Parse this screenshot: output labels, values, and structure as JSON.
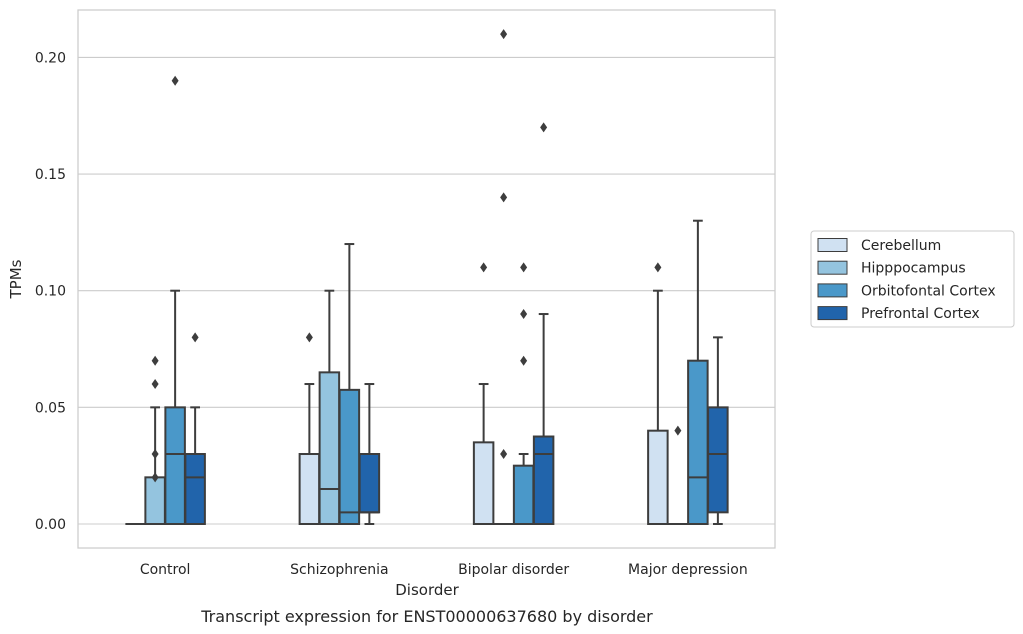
{
  "chart_data": {
    "type": "boxplot",
    "title": "",
    "caption": "Transcript expression for ENST00000637680 by disorder",
    "xlabel": "Disorder",
    "ylabel": "TPMs",
    "ylim": [
      -0.01,
      0.22
    ],
    "yticks": [
      "0.00",
      "0.05",
      "0.10",
      "0.15",
      "0.20"
    ],
    "ytick_values": [
      0.0,
      0.05,
      0.1,
      0.15,
      0.2
    ],
    "grid": "horizontal",
    "legend_position": "right-center",
    "categories": [
      "Control",
      "Schizophrenia",
      "Bipolar disorder",
      "Major depression"
    ],
    "series": [
      {
        "name": "Cerebellum",
        "color": "#d0e1f2",
        "boxes": [
          {
            "q1": 0.0,
            "median": 0.0,
            "q3": 0.0,
            "whisker_low": 0.0,
            "whisker_high": 0.0,
            "outliers": []
          },
          {
            "q1": 0.0,
            "median": 0.0,
            "q3": 0.03,
            "whisker_low": 0.0,
            "whisker_high": 0.06,
            "outliers": [
              0.08
            ]
          },
          {
            "q1": 0.0,
            "median": 0.0,
            "q3": 0.035,
            "whisker_low": 0.0,
            "whisker_high": 0.06,
            "outliers": [
              0.11
            ]
          },
          {
            "q1": 0.0,
            "median": 0.0,
            "q3": 0.04,
            "whisker_low": 0.0,
            "whisker_high": 0.1,
            "outliers": [
              0.11
            ]
          }
        ]
      },
      {
        "name": "Hipppocampus",
        "color": "#94c4df",
        "boxes": [
          {
            "q1": 0.0,
            "median": 0.0,
            "q3": 0.02,
            "whisker_low": 0.0,
            "whisker_high": 0.05,
            "outliers": [
              0.02,
              0.03,
              0.06,
              0.07
            ]
          },
          {
            "q1": 0.0,
            "median": 0.015,
            "q3": 0.065,
            "whisker_low": 0.0,
            "whisker_high": 0.1,
            "outliers": []
          },
          {
            "q1": 0.0,
            "median": 0.0,
            "q3": 0.0,
            "whisker_low": 0.0,
            "whisker_high": 0.0,
            "outliers": [
              0.03,
              0.14,
              0.21
            ]
          },
          {
            "q1": 0.0,
            "median": 0.0,
            "q3": 0.0,
            "whisker_low": 0.0,
            "whisker_high": 0.0,
            "outliers": [
              0.04
            ]
          }
        ]
      },
      {
        "name": "Orbitofontal Cortex",
        "color": "#4a98c9",
        "boxes": [
          {
            "q1": 0.0,
            "median": 0.03,
            "q3": 0.05,
            "whisker_low": 0.0,
            "whisker_high": 0.1,
            "outliers": [
              0.19
            ]
          },
          {
            "q1": 0.0,
            "median": 0.005,
            "q3": 0.0575,
            "whisker_low": 0.0,
            "whisker_high": 0.12,
            "outliers": []
          },
          {
            "q1": 0.0,
            "median": 0.0,
            "q3": 0.025,
            "whisker_low": 0.0,
            "whisker_high": 0.03,
            "outliers": [
              0.07,
              0.09,
              0.11
            ]
          },
          {
            "q1": 0.0,
            "median": 0.02,
            "q3": 0.07,
            "whisker_low": 0.0,
            "whisker_high": 0.13,
            "outliers": []
          }
        ]
      },
      {
        "name": "Prefrontal Cortex",
        "color": "#2164ab",
        "boxes": [
          {
            "q1": 0.0,
            "median": 0.02,
            "q3": 0.03,
            "whisker_low": 0.0,
            "whisker_high": 0.05,
            "outliers": [
              0.08
            ]
          },
          {
            "q1": 0.005,
            "median": 0.005,
            "q3": 0.03,
            "whisker_low": 0.0,
            "whisker_high": 0.06,
            "outliers": []
          },
          {
            "q1": 0.0,
            "median": 0.03,
            "q3": 0.0375,
            "whisker_low": 0.0,
            "whisker_high": 0.09,
            "outliers": [
              0.17
            ]
          },
          {
            "q1": 0.005,
            "median": 0.03,
            "q3": 0.05,
            "whisker_low": 0.0,
            "whisker_high": 0.08,
            "outliers": []
          }
        ]
      }
    ]
  }
}
